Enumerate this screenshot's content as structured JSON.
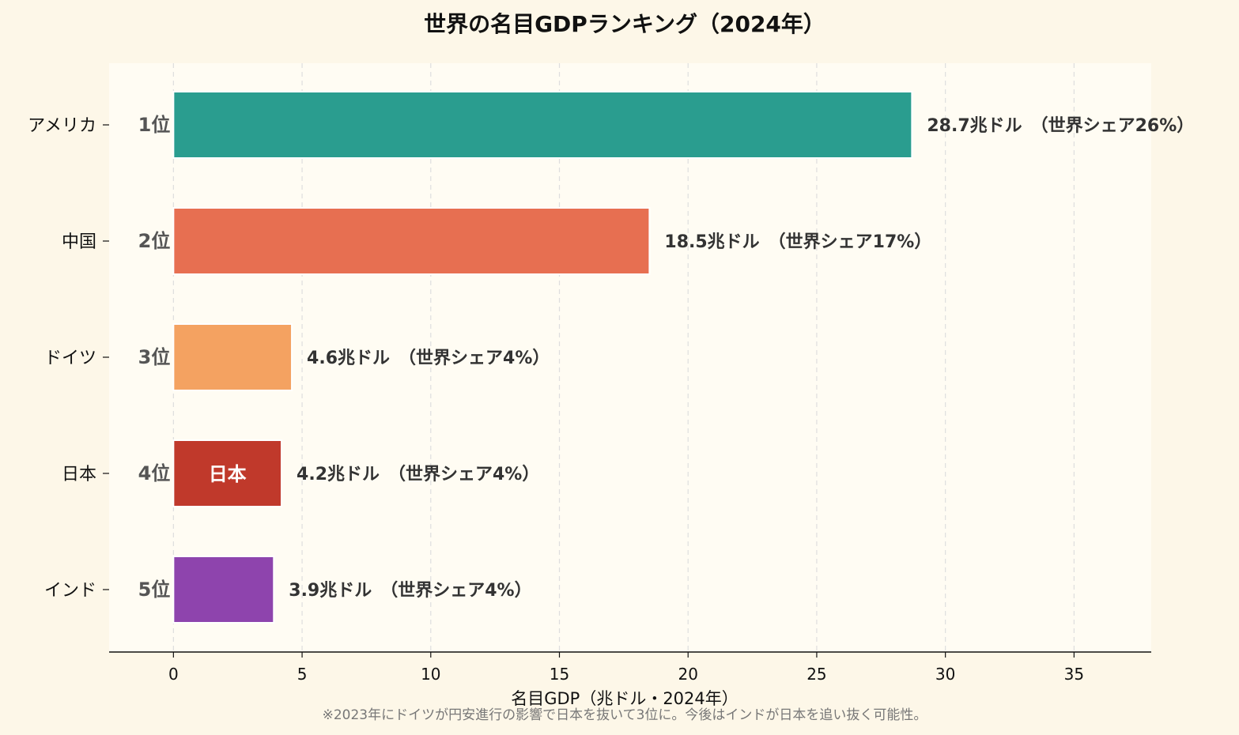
{
  "chart_data": {
    "type": "bar",
    "orientation": "horizontal",
    "title": "世界の名目GDPランキング（2024年）",
    "xlabel": "名目GDP（兆ドル・2024年）",
    "xlim": [
      -2.5,
      38
    ],
    "xticks": [
      0,
      5,
      10,
      15,
      20,
      25,
      30,
      35
    ],
    "grid": "vertical-dashed",
    "categories": [
      "アメリカ",
      "中国",
      "ドイツ",
      "日本",
      "インド"
    ],
    "values": [
      28.7,
      18.5,
      4.6,
      4.2,
      3.9
    ],
    "ranks": [
      "1位",
      "2位",
      "3位",
      "4位",
      "5位"
    ],
    "value_labels": [
      "28.7兆ドル　（世界シェア26%）",
      "18.5兆ドル　（世界シェア17%）",
      "4.6兆ドル　（世界シェア4%）",
      "4.2兆ドル　（世界シェア4%）",
      "3.9兆ドル　（世界シェア4%）"
    ],
    "colors": [
      "#2a9d8f",
      "#e76f51",
      "#f4a261",
      "#c0392b",
      "#8e44ad"
    ],
    "highlight_label": "日本",
    "highlight_index": 3,
    "note": "※2023年にドイツが円安進行の影響で日本を抜いて3位に。今後はインドが日本を追い抜く可能性。"
  }
}
